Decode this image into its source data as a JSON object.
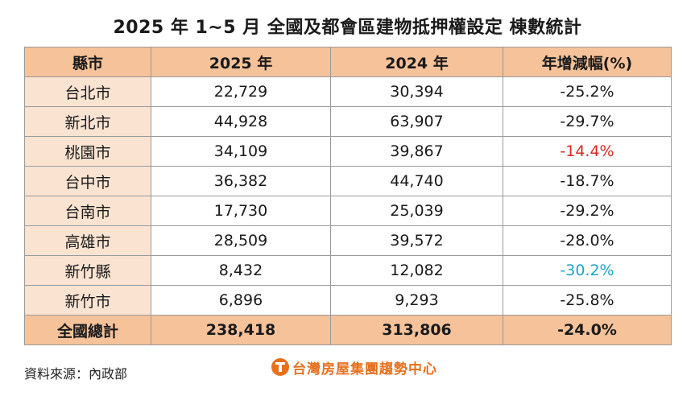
{
  "title": "2025 年 1~5 月  全國及都會區建物抵押權設定  棟數統計",
  "table": {
    "headers": [
      "縣市",
      "2025 年",
      "2024 年",
      "年增減幅(%)"
    ],
    "rows": [
      {
        "city": "台北市",
        "y2025": "22,729",
        "y2024": "30,394",
        "change": "-25.2%",
        "change_style": "normal"
      },
      {
        "city": "新北市",
        "y2025": "44,928",
        "y2024": "63,907",
        "change": "-29.7%",
        "change_style": "normal"
      },
      {
        "city": "桃園市",
        "y2025": "34,109",
        "y2024": "39,867",
        "change": "-14.4%",
        "change_style": "red"
      },
      {
        "city": "台中市",
        "y2025": "36,382",
        "y2024": "44,740",
        "change": "-18.7%",
        "change_style": "normal"
      },
      {
        "city": "台南市",
        "y2025": "17,730",
        "y2024": "25,039",
        "change": "-29.2%",
        "change_style": "normal"
      },
      {
        "city": "高雄市",
        "y2025": "28,509",
        "y2024": "39,572",
        "change": "-28.0%",
        "change_style": "normal"
      },
      {
        "city": "新竹縣",
        "y2025": "8,432",
        "y2024": "12,082",
        "change": "-30.2%",
        "change_style": "cyan"
      },
      {
        "city": "新竹市",
        "y2025": "6,896",
        "y2024": "9,293",
        "change": "-25.8%",
        "change_style": "normal"
      }
    ],
    "total": {
      "city": "全國總計",
      "y2025": "238,418",
      "y2024": "313,806",
      "change": "-24.0%"
    }
  },
  "colors": {
    "header_bg": "#f5c29a",
    "city_bg": "#fbe3d2",
    "highlight_red": "#d42a22",
    "highlight_cyan": "#1aa6c8",
    "logo_orange": "#e7701f"
  },
  "footer": {
    "source": "資料來源：內政部",
    "logo_text": "台灣房屋集團趨勢中心",
    "logo_icon": "taiwan-realty-logo-icon"
  }
}
